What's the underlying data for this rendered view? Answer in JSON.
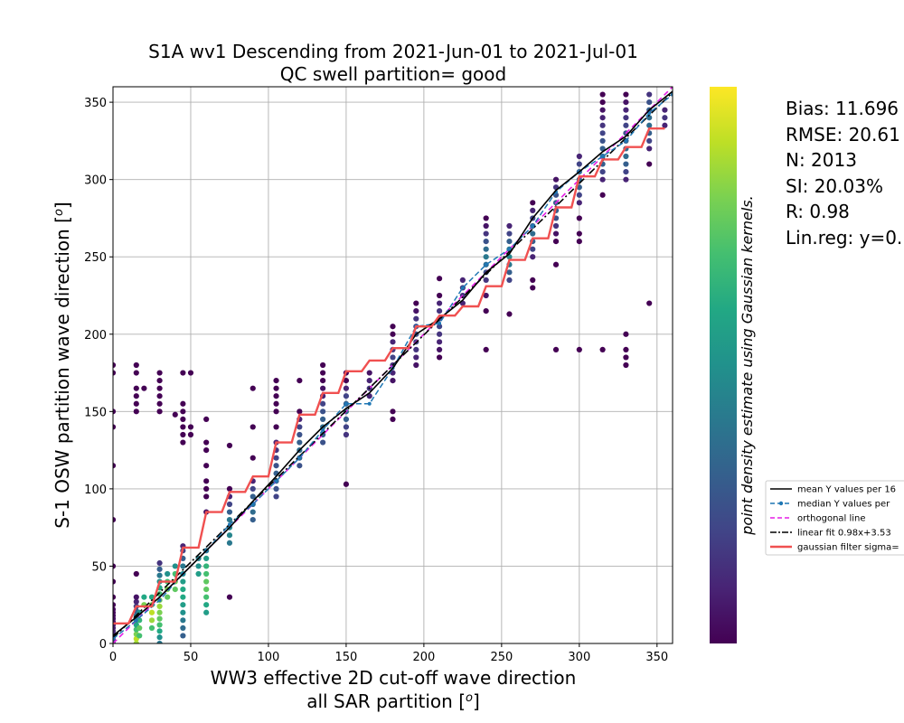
{
  "chart_data": {
    "type": "scatter",
    "title": "S1A wv1 Descending from 2021-Jun-01 to 2021-Jul-01",
    "subtitle": "QC swell partition= good",
    "xlabel": "WW3 effective 2D cut-off wave direction",
    "xlabel2": "all SAR partition [$^o$]",
    "ylabel": "S-1 OSW partition wave direction [$^o$]",
    "colorbar_label": "point density estimate using Gaussian kernels.",
    "xlim": [
      0,
      360
    ],
    "ylim": [
      0,
      360
    ],
    "x_ticks": [
      "0",
      "50",
      "100",
      "150",
      "200",
      "250",
      "300",
      "350"
    ],
    "y_ticks": [
      "0",
      "50",
      "100",
      "150",
      "200",
      "250",
      "300",
      "350"
    ],
    "grid": true,
    "colormap": "viridis",
    "stats": [
      "Bias: 11.696",
      "RMSE: 20.61",
      "N: 2013",
      "SI: 20.03%",
      "R: 0.98",
      "Lin.reg: y=0."
    ],
    "legend": {
      "placement": "right",
      "entries": [
        {
          "label": "mean Y values per 16",
          "color": "#000000",
          "style": "solid"
        },
        {
          "label": "median Y values per",
          "color": "#1f77b4",
          "style": "dashed-marker"
        },
        {
          "label": "orthogonal line",
          "color": "#e61ee6",
          "style": "dashed"
        },
        {
          "label": "linear fit 0.98x+3.53",
          "color": "#000000",
          "style": "dashdot"
        },
        {
          "label": "gaussian filter sigma=",
          "color": "#f05050",
          "style": "solid-thick"
        }
      ]
    },
    "columns": [
      {
        "x": 0,
        "ys": [
          0,
          2,
          4,
          6,
          8,
          10,
          12,
          14,
          16,
          18,
          20,
          22,
          25,
          30,
          40,
          50,
          80,
          115,
          140,
          150,
          175,
          180
        ],
        "d": [
          0.25,
          0.2,
          0.15,
          0.12,
          0.1,
          0.08,
          0.07,
          0.05,
          0.04,
          0.03,
          0.02,
          0.02,
          0.01,
          0,
          0,
          0,
          0,
          0,
          0,
          0,
          0,
          0
        ]
      },
      {
        "x": 15,
        "ys": [
          0,
          3,
          6,
          9,
          12,
          15,
          18,
          21,
          24,
          27,
          30,
          45,
          150,
          155,
          160,
          165,
          175,
          180
        ],
        "d": [
          0.85,
          0.9,
          0.8,
          0.7,
          0.6,
          0.5,
          0.4,
          0.3,
          0.2,
          0.1,
          0.05,
          0,
          0,
          0,
          0,
          0,
          0,
          0
        ]
      },
      {
        "x": 17,
        "ys": [
          5,
          10,
          15,
          20
        ],
        "d": [
          0.7,
          0.75,
          0.65,
          0.5
        ]
      },
      {
        "x": 20,
        "ys": [
          25,
          30,
          165
        ],
        "d": [
          0.8,
          0.6,
          0
        ]
      },
      {
        "x": 25,
        "ys": [
          10,
          15,
          20,
          25,
          30
        ],
        "d": [
          0.7,
          0.85,
          0.9,
          0.8,
          0.6
        ]
      },
      {
        "x": 30,
        "ys": [
          0,
          4,
          8,
          12,
          16,
          20,
          24,
          28,
          32,
          36,
          40,
          44,
          48,
          52,
          150,
          155,
          160,
          165,
          170,
          175
        ],
        "d": [
          0.4,
          0.5,
          0.6,
          0.7,
          0.75,
          0.8,
          0.85,
          0.8,
          0.7,
          0.6,
          0.5,
          0.4,
          0.3,
          0.15,
          0,
          0,
          0,
          0,
          0,
          0
        ]
      },
      {
        "x": 35,
        "ys": [
          30,
          35,
          40,
          45
        ],
        "d": [
          0.75,
          0.8,
          0.7,
          0.5
        ]
      },
      {
        "x": 40,
        "ys": [
          35,
          40,
          45,
          50,
          148
        ],
        "d": [
          0.75,
          0.8,
          0.7,
          0.5,
          0
        ]
      },
      {
        "x": 45,
        "ys": [
          5,
          10,
          15,
          20,
          25,
          30,
          35,
          40,
          45,
          50,
          55,
          60,
          63,
          130,
          135,
          140,
          145,
          150,
          155,
          175
        ],
        "d": [
          0.3,
          0.35,
          0.4,
          0.5,
          0.55,
          0.6,
          0.6,
          0.55,
          0.5,
          0.4,
          0.3,
          0.2,
          0.1,
          0,
          0,
          0,
          0,
          0,
          0,
          0
        ]
      },
      {
        "x": 50,
        "ys": [
          135,
          140,
          175
        ],
        "d": [
          0,
          0,
          0
        ]
      },
      {
        "x": 55,
        "ys": [
          45,
          50,
          55
        ],
        "d": [
          0.55,
          0.5,
          0.45
        ]
      },
      {
        "x": 60,
        "ys": [
          20,
          25,
          30,
          35,
          40,
          45,
          50,
          55,
          60,
          85,
          95,
          100,
          105,
          115,
          125,
          130,
          145
        ],
        "d": [
          0.55,
          0.6,
          0.7,
          0.75,
          0.75,
          0.7,
          0.65,
          0.55,
          0.4,
          0.05,
          0,
          0,
          0,
          0,
          0,
          0,
          0
        ]
      },
      {
        "x": 75,
        "ys": [
          30,
          65,
          70,
          75,
          80,
          85,
          90,
          95,
          100,
          128
        ],
        "d": [
          0,
          0.4,
          0.45,
          0.45,
          0.4,
          0.3,
          0.2,
          0.1,
          0,
          0
        ]
      },
      {
        "x": 90,
        "ys": [
          80,
          85,
          90,
          95,
          100,
          105,
          120,
          140,
          165
        ],
        "d": [
          0.3,
          0.35,
          0.35,
          0.3,
          0.2,
          0.1,
          0,
          0,
          0
        ]
      },
      {
        "x": 105,
        "ys": [
          95,
          100,
          105,
          110,
          115,
          120,
          125,
          130,
          140,
          150,
          155,
          160,
          165,
          170
        ],
        "d": [
          0.2,
          0.25,
          0.3,
          0.3,
          0.25,
          0.2,
          0.15,
          0.1,
          0,
          0,
          0,
          0,
          0,
          0
        ]
      },
      {
        "x": 120,
        "ys": [
          115,
          120,
          125,
          130,
          135,
          140,
          145,
          150,
          170
        ],
        "d": [
          0.25,
          0.3,
          0.35,
          0.3,
          0.25,
          0.2,
          0.1,
          0,
          0
        ]
      },
      {
        "x": 135,
        "ys": [
          130,
          135,
          140,
          145,
          150,
          155,
          160,
          165,
          170,
          175,
          180
        ],
        "d": [
          0.25,
          0.3,
          0.35,
          0.3,
          0.25,
          0.2,
          0.1,
          0.05,
          0,
          0,
          0
        ]
      },
      {
        "x": 150,
        "ys": [
          103,
          135,
          140,
          145,
          150,
          155,
          160,
          165,
          170,
          175
        ],
        "d": [
          0,
          0.15,
          0.2,
          0.3,
          0.35,
          0.3,
          0.2,
          0.1,
          0,
          0
        ]
      },
      {
        "x": 165,
        "ys": [
          160,
          165,
          170,
          175
        ],
        "d": [
          0.1,
          0.15,
          0.1,
          0.05
        ]
      },
      {
        "x": 180,
        "ys": [
          145,
          150,
          170,
          175,
          180,
          185,
          190,
          195,
          200,
          205
        ],
        "d": [
          0,
          0,
          0.05,
          0.1,
          0.15,
          0.2,
          0.15,
          0.1,
          0,
          0
        ]
      },
      {
        "x": 195,
        "ys": [
          180,
          185,
          190,
          195,
          200,
          205,
          210,
          215,
          220
        ],
        "d": [
          0.05,
          0.1,
          0.15,
          0.2,
          0.25,
          0.2,
          0.15,
          0.05,
          0
        ]
      },
      {
        "x": 210,
        "ys": [
          185,
          190,
          195,
          200,
          205,
          210,
          215,
          220,
          225,
          236
        ],
        "d": [
          0,
          0.05,
          0.1,
          0.15,
          0.2,
          0.2,
          0.15,
          0.1,
          0,
          0
        ]
      },
      {
        "x": 225,
        "ys": [
          220,
          225,
          230,
          235
        ],
        "d": [
          0.1,
          0.15,
          0.15,
          0.1
        ]
      },
      {
        "x": 240,
        "ys": [
          190,
          215,
          225,
          235,
          240,
          245,
          250,
          255,
          260,
          265,
          270,
          275
        ],
        "d": [
          0,
          0,
          0.05,
          0.15,
          0.25,
          0.35,
          0.4,
          0.35,
          0.25,
          0.15,
          0.05,
          0
        ]
      },
      {
        "x": 255,
        "ys": [
          213,
          235,
          240,
          245,
          250,
          255,
          260,
          265,
          270
        ],
        "d": [
          0,
          0.2,
          0.3,
          0.4,
          0.45,
          0.4,
          0.3,
          0.2,
          0.1
        ]
      },
      {
        "x": 270,
        "ys": [
          230,
          235,
          250,
          255,
          260,
          265,
          270,
          275,
          280,
          285
        ],
        "d": [
          0,
          0,
          0.1,
          0.2,
          0.3,
          0.35,
          0.3,
          0.2,
          0.1,
          0
        ]
      },
      {
        "x": 285,
        "ys": [
          190,
          245,
          260,
          265,
          270,
          275,
          280,
          285,
          290,
          295,
          300
        ],
        "d": [
          0,
          0,
          0,
          0.05,
          0.15,
          0.25,
          0.3,
          0.3,
          0.25,
          0.15,
          0.05
        ]
      },
      {
        "x": 300,
        "ys": [
          190,
          260,
          265,
          275,
          285,
          290,
          295,
          300,
          305,
          310,
          315
        ],
        "d": [
          0,
          0,
          0,
          0,
          0.1,
          0.2,
          0.3,
          0.35,
          0.3,
          0.2,
          0.1
        ]
      },
      {
        "x": 315,
        "ys": [
          190,
          290,
          300,
          305,
          310,
          315,
          320,
          325,
          330,
          335,
          340,
          345,
          350,
          355
        ],
        "d": [
          0,
          0,
          0.1,
          0.2,
          0.3,
          0.35,
          0.3,
          0.25,
          0.2,
          0.15,
          0.1,
          0.05,
          0,
          0
        ]
      },
      {
        "x": 330,
        "ys": [
          180,
          185,
          190,
          200,
          300,
          305,
          310,
          315,
          320,
          325,
          330,
          335,
          340,
          345,
          350,
          355
        ],
        "d": [
          0,
          0,
          0,
          0,
          0.1,
          0.2,
          0.3,
          0.35,
          0.35,
          0.3,
          0.25,
          0.2,
          0.15,
          0.1,
          0.05,
          0
        ]
      },
      {
        "x": 345,
        "ys": [
          220,
          310,
          320,
          325,
          330,
          335,
          340,
          345,
          350,
          355
        ],
        "d": [
          0,
          0,
          0.1,
          0.2,
          0.3,
          0.35,
          0.35,
          0.3,
          0.25,
          0.15
        ]
      },
      {
        "x": 355,
        "ys": [
          335,
          340,
          345
        ],
        "d": [
          0.1,
          0.15,
          0.1
        ]
      }
    ],
    "mean_line": {
      "x": [
        0,
        15,
        30,
        45,
        60,
        75,
        90,
        105,
        120,
        135,
        150,
        165,
        180,
        195,
        210,
        225,
        240,
        255,
        270,
        285,
        300,
        315,
        330,
        345,
        360
      ],
      "y": [
        5,
        17,
        30,
        45,
        60,
        75,
        92,
        108,
        125,
        140,
        152,
        162,
        178,
        200,
        210,
        222,
        240,
        252,
        275,
        293,
        305,
        318,
        328,
        345,
        357
      ]
    },
    "median_line": {
      "x": [
        0,
        15,
        30,
        45,
        60,
        75,
        90,
        105,
        120,
        135,
        150,
        165,
        180,
        195,
        210,
        225,
        240,
        255,
        270,
        285,
        300,
        315,
        330,
        345,
        360
      ],
      "y": [
        3,
        15,
        28,
        45,
        60,
        77,
        90,
        105,
        120,
        138,
        155,
        155,
        178,
        205,
        207,
        230,
        245,
        255,
        270,
        292,
        305,
        315,
        325,
        343,
        355
      ]
    },
    "orthogonal_line": {
      "x": [
        0,
        360
      ],
      "y": [
        0,
        360
      ]
    },
    "linear_fit": {
      "x": [
        0,
        360
      ],
      "y": [
        3.53,
        356.33
      ]
    },
    "gaussian_filter": {
      "x": [
        0,
        5,
        10,
        15,
        20,
        25,
        30,
        35,
        40,
        45,
        50,
        55,
        60,
        65,
        70,
        75,
        80,
        85,
        90,
        95,
        100,
        105,
        110,
        115,
        120,
        125,
        130,
        135,
        140,
        145,
        150,
        155,
        160,
        165,
        170,
        175,
        180,
        185,
        190,
        195,
        200,
        205,
        210,
        215,
        220,
        225,
        230,
        235,
        240,
        245,
        250,
        255,
        260,
        265,
        270,
        275,
        280,
        285,
        290,
        295,
        300,
        305,
        310,
        315,
        320,
        325,
        330,
        335,
        340,
        345,
        350,
        355
      ],
      "y": [
        13,
        13,
        13,
        24,
        24,
        24,
        40,
        40,
        40,
        62,
        62,
        62,
        85,
        85,
        85,
        98,
        98,
        98,
        108,
        108,
        108,
        130,
        130,
        130,
        148,
        148,
        148,
        162,
        162,
        162,
        176,
        176,
        176,
        183,
        183,
        183,
        191,
        191,
        191,
        205,
        205,
        205,
        212,
        212,
        212,
        218,
        218,
        218,
        231,
        231,
        231,
        248,
        248,
        248,
        262,
        262,
        262,
        282,
        282,
        282,
        302,
        302,
        302,
        313,
        313,
        313,
        321,
        321,
        321,
        333,
        333,
        333
      ]
    }
  }
}
